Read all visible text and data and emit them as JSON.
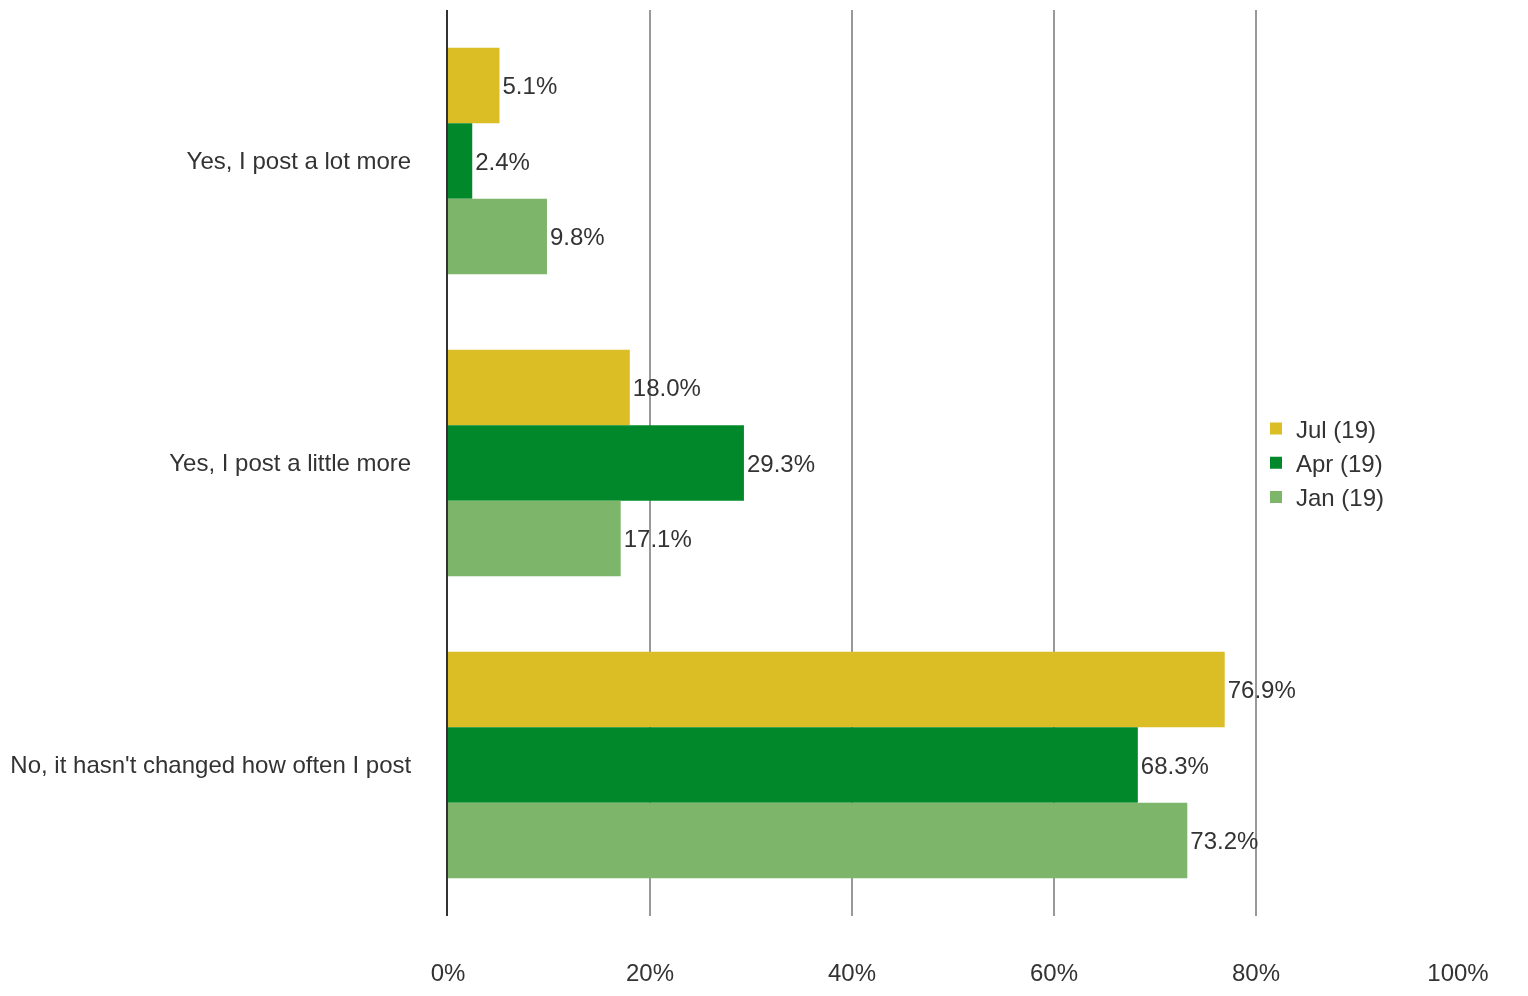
{
  "chart_data": {
    "type": "bar",
    "orientation": "horizontal",
    "categories": [
      "Yes, I post a lot more",
      "Yes, I post a little more",
      "No, it hasn't changed how often I post"
    ],
    "series": [
      {
        "name": "Jul (19)",
        "color": "#dbbd25",
        "values": [
          5.1,
          18.0,
          76.9
        ],
        "value_labels": [
          "5.1%",
          "18.0%",
          "76.9%"
        ]
      },
      {
        "name": "Apr (19)",
        "color": "#00882b",
        "values": [
          2.4,
          29.3,
          68.3
        ],
        "value_labels": [
          "2.4%",
          "29.3%",
          "68.3%"
        ]
      },
      {
        "name": "Jan (19)",
        "color": "#7db66a",
        "values": [
          9.8,
          17.1,
          73.2
        ],
        "value_labels": [
          "9.8%",
          "17.1%",
          "73.2%"
        ]
      }
    ],
    "xlim": [
      0,
      100
    ],
    "xticks": [
      {
        "value": 0,
        "label": "0%"
      },
      {
        "value": 20,
        "label": "20%"
      },
      {
        "value": 40,
        "label": "40%"
      },
      {
        "value": 60,
        "label": "60%"
      },
      {
        "value": 80,
        "label": "80%"
      },
      {
        "value": 100,
        "label": "100%"
      }
    ],
    "grid": "x",
    "legend": "right"
  }
}
